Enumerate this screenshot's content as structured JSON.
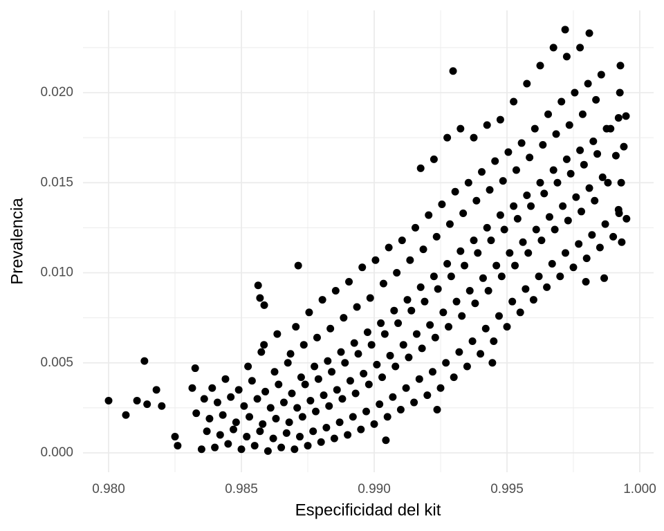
{
  "chart_data": {
    "type": "scatter",
    "x_label": "Especificidad del kit",
    "y_label": "Prevalencia",
    "xlim": [
      0.979036,
      1.000521
    ],
    "ylim": [
      -0.001075,
      0.024568
    ],
    "xticks": [
      {
        "value": 0.98,
        "label": "0.980"
      },
      0.985,
      {
        "value": 0.99,
        "label": "0.990"
      },
      0.995,
      {
        "value": 1.0,
        "label": "1.000"
      }
    ],
    "yticks": [
      {
        "value": 0,
        "label": "0.000"
      },
      0.005,
      {
        "value": 0.01,
        "label": "0.010"
      },
      0.015,
      {
        "value": 0.02,
        "label": "0.020"
      }
    ],
    "x_minor_ticks": [
      0.9825,
      0.9875,
      0.9925,
      0.9975
    ],
    "y_minor_ticks": [
      0.0025,
      0.0075,
      0.0125,
      0.0175,
      0.0225
    ],
    "grid": true,
    "color": "#000000",
    "x": [
      0.98,
      0.98065,
      0.98107,
      0.98135,
      0.98145,
      0.9818,
      0.982,
      0.9825,
      0.9826,
      0.98326,
      0.98315,
      0.98563,
      0.9857,
      0.98586,
      0.98714,
      0.99297,
      0.99719,
      0.9981,
      0.99927,
      0.99948,
      0.99932,
      0.99922,
      0.99866,
      0.99797,
      0.99044,
      0.99237,
      0.99445,
      0.9835,
      0.9837,
      0.9833,
      0.9836,
      0.984,
      0.9842,
      0.9838,
      0.9841,
      0.9839,
      0.9845,
      0.9847,
      0.9843,
      0.9846,
      0.9844,
      0.985,
      0.9852,
      0.9848,
      0.9851,
      0.9849,
      0.98525,
      0.9855,
      0.9857,
      0.9853,
      0.9856,
      0.9854,
      0.98575,
      0.986,
      0.9862,
      0.9858,
      0.9861,
      0.9859,
      0.98625,
      0.98585,
      0.9865,
      0.9867,
      0.9863,
      0.9866,
      0.9864,
      0.98675,
      0.98635,
      0.987,
      0.9872,
      0.9868,
      0.9871,
      0.9869,
      0.98725,
      0.98685,
      0.98705,
      0.9875,
      0.9877,
      0.9873,
      0.9876,
      0.9874,
      0.98775,
      0.98735,
      0.98755,
      0.988,
      0.9882,
      0.9878,
      0.9881,
      0.9879,
      0.98825,
      0.98785,
      0.98805,
      0.9885,
      0.9887,
      0.9883,
      0.9886,
      0.9884,
      0.98875,
      0.98835,
      0.98855,
      0.989,
      0.9892,
      0.9888,
      0.9891,
      0.9889,
      0.98925,
      0.98885,
      0.98905,
      0.9895,
      0.9897,
      0.9893,
      0.9896,
      0.9894,
      0.98975,
      0.98935,
      0.98955,
      0.99,
      0.9902,
      0.9898,
      0.9901,
      0.9899,
      0.99025,
      0.98985,
      0.99005,
      0.9905,
      0.9907,
      0.9903,
      0.9906,
      0.9904,
      0.99075,
      0.99035,
      0.99055,
      0.991,
      0.9912,
      0.9908,
      0.9911,
      0.9909,
      0.99125,
      0.99085,
      0.99105,
      0.9915,
      0.9917,
      0.9913,
      0.9916,
      0.9914,
      0.99175,
      0.99135,
      0.99155,
      0.992,
      0.9922,
      0.9918,
      0.9921,
      0.9919,
      0.99225,
      0.99185,
      0.99205,
      0.99175,
      0.9925,
      0.9927,
      0.9923,
      0.9926,
      0.9924,
      0.99275,
      0.99235,
      0.99255,
      0.99225,
      0.993,
      0.9932,
      0.9928,
      0.9931,
      0.9929,
      0.99325,
      0.99285,
      0.99305,
      0.99275,
      0.9935,
      0.9937,
      0.9933,
      0.9936,
      0.9934,
      0.99375,
      0.99335,
      0.99355,
      0.99325,
      0.994,
      0.9942,
      0.9938,
      0.9941,
      0.9939,
      0.99425,
      0.99385,
      0.99405,
      0.99375,
      0.9945,
      0.9947,
      0.9943,
      0.9946,
      0.9944,
      0.99475,
      0.99435,
      0.99455,
      0.99425,
      0.995,
      0.9952,
      0.9948,
      0.9951,
      0.9949,
      0.99525,
      0.99485,
      0.99505,
      0.99475,
      0.9955,
      0.9957,
      0.9953,
      0.9956,
      0.9954,
      0.99575,
      0.99535,
      0.99555,
      0.99525,
      0.996,
      0.9962,
      0.9958,
      0.9961,
      0.9959,
      0.99625,
      0.99585,
      0.99605,
      0.99575,
      0.9965,
      0.9967,
      0.9963,
      0.9966,
      0.9964,
      0.99675,
      0.99635,
      0.99655,
      0.99625,
      0.997,
      0.9972,
      0.9968,
      0.9971,
      0.9969,
      0.99725,
      0.99685,
      0.99705,
      0.99675,
      0.9975,
      0.9977,
      0.9973,
      0.9976,
      0.9974,
      0.99775,
      0.99735,
      0.99755,
      0.99725,
      0.998,
      0.9982,
      0.9978,
      0.9981,
      0.9979,
      0.99825,
      0.99785,
      0.99805,
      0.99775,
      0.9985,
      0.9987,
      0.9983,
      0.9986,
      0.9984,
      0.99875,
      0.99835,
      0.99855,
      0.999,
      0.9992,
      0.9988,
      0.9991,
      0.9989,
      0.99925,
      0.9995,
      0.9993,
      0.9994,
      0.9992
    ],
    "values": [
      0.0029,
      0.0021,
      0.0029,
      0.0051,
      0.0027,
      0.0035,
      0.0026,
      0.0009,
      0.0004,
      0.0047,
      0.0036,
      0.0093,
      0.0086,
      0.0082,
      0.0104,
      0.0212,
      0.0235,
      0.0233,
      0.0215,
      0.0187,
      0.0117,
      0.0133,
      0.0097,
      0.0095,
      0.0007,
      0.0024,
      0.005,
      0.0002,
      0.0012,
      0.0022,
      0.003,
      0.0003,
      0.001,
      0.0019,
      0.0028,
      0.0036,
      0.0005,
      0.0013,
      0.0021,
      0.0031,
      0.0041,
      0.0002,
      0.0009,
      0.0017,
      0.0026,
      0.0035,
      0.0048,
      0.0004,
      0.0012,
      0.002,
      0.003,
      0.004,
      0.0056,
      0.0001,
      0.0008,
      0.0016,
      0.0025,
      0.0034,
      0.0045,
      0.006,
      0.0003,
      0.0011,
      0.0019,
      0.0028,
      0.0038,
      0.005,
      0.0066,
      0.0002,
      0.0009,
      0.0017,
      0.0025,
      0.0033,
      0.0042,
      0.0055,
      0.007,
      0.0004,
      0.0012,
      0.002,
      0.0029,
      0.0038,
      0.0048,
      0.006,
      0.0078,
      0.0006,
      0.0014,
      0.0023,
      0.0032,
      0.0041,
      0.0051,
      0.0064,
      0.0085,
      0.0008,
      0.0017,
      0.0026,
      0.0035,
      0.0045,
      0.0056,
      0.0069,
      0.009,
      0.001,
      0.002,
      0.003,
      0.004,
      0.005,
      0.0061,
      0.0075,
      0.0095,
      0.0013,
      0.0023,
      0.0033,
      0.0044,
      0.0055,
      0.0067,
      0.0081,
      0.0103,
      0.0016,
      0.0027,
      0.0038,
      0.0049,
      0.006,
      0.0072,
      0.0086,
      0.0107,
      0.002,
      0.0031,
      0.0042,
      0.0054,
      0.0066,
      0.0079,
      0.0094,
      0.0114,
      0.0024,
      0.0036,
      0.0048,
      0.006,
      0.0072,
      0.0085,
      0.01,
      0.0118,
      0.0028,
      0.0041,
      0.0053,
      0.0066,
      0.0079,
      0.0092,
      0.0107,
      0.0125,
      0.0032,
      0.0045,
      0.0058,
      0.0071,
      0.0084,
      0.0098,
      0.0113,
      0.0132,
      0.0158,
      0.0036,
      0.005,
      0.0064,
      0.0078,
      0.0091,
      0.0105,
      0.012,
      0.0138,
      0.0163,
      0.0042,
      0.0056,
      0.007,
      0.0084,
      0.0098,
      0.0112,
      0.0127,
      0.0145,
      0.0175,
      0.0048,
      0.0062,
      0.0076,
      0.009,
      0.0104,
      0.0118,
      0.0133,
      0.015,
      0.018,
      0.0055,
      0.0069,
      0.0083,
      0.0097,
      0.0111,
      0.0125,
      0.014,
      0.0156,
      0.0175,
      0.0062,
      0.0076,
      0.009,
      0.0104,
      0.0118,
      0.0132,
      0.0146,
      0.0162,
      0.0182,
      0.007,
      0.0084,
      0.0098,
      0.0111,
      0.0124,
      0.0137,
      0.0151,
      0.0167,
      0.0185,
      0.0078,
      0.0091,
      0.0104,
      0.0117,
      0.013,
      0.0143,
      0.0157,
      0.0172,
      0.0195,
      0.0085,
      0.0098,
      0.0111,
      0.0124,
      0.0137,
      0.015,
      0.0164,
      0.018,
      0.0205,
      0.0092,
      0.0105,
      0.0118,
      0.0131,
      0.0144,
      0.0157,
      0.0171,
      0.0188,
      0.0215,
      0.0098,
      0.0111,
      0.0124,
      0.0137,
      0.015,
      0.0163,
      0.0177,
      0.0195,
      0.0225,
      0.0103,
      0.0116,
      0.0129,
      0.0142,
      0.0155,
      0.0168,
      0.0182,
      0.02,
      0.022,
      0.0108,
      0.0121,
      0.0134,
      0.0147,
      0.016,
      0.0173,
      0.0188,
      0.0205,
      0.0225,
      0.0114,
      0.0127,
      0.014,
      0.0153,
      0.0166,
      0.018,
      0.0196,
      0.021,
      0.012,
      0.0135,
      0.015,
      0.0165,
      0.018,
      0.02,
      0.013,
      0.015,
      0.017,
      0.0186
    ]
  }
}
